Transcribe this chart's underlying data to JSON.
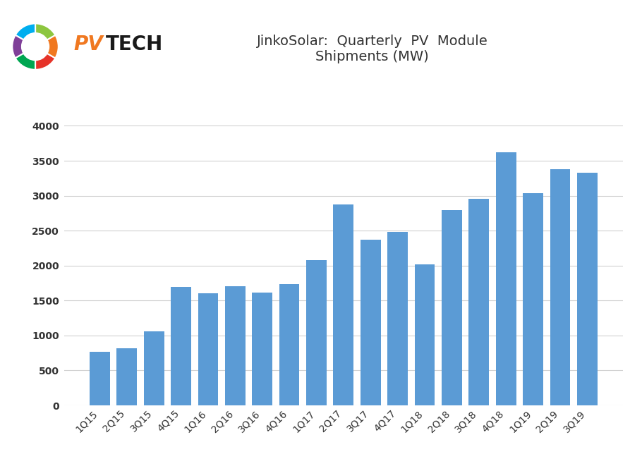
{
  "title": "JinkoSolar:  Quarterly  PV  Module\nShipments (MW)",
  "labels": [
    "1Q15",
    "2Q15",
    "3Q15",
    "4Q15",
    "1Q16",
    "2Q16",
    "3Q16",
    "4Q16",
    "1Q17",
    "2Q17",
    "3Q17",
    "4Q17",
    "1Q18",
    "2Q18",
    "3Q18",
    "4Q18",
    "1Q19",
    "2Q19",
    "3Q19"
  ],
  "values": [
    770,
    820,
    1060,
    1700,
    1600,
    1710,
    1610,
    1740,
    2080,
    2880,
    2370,
    2480,
    2020,
    2790,
    2960,
    3620,
    3040,
    3380,
    3326
  ],
  "bar_color": "#5b9bd5",
  "ylim": [
    0,
    4000
  ],
  "yticks": [
    0,
    500,
    1000,
    1500,
    2000,
    2500,
    3000,
    3500,
    4000
  ],
  "background_color": "#ffffff",
  "grid_color": "#d0d0d0",
  "title_fontsize": 14,
  "tick_fontsize": 10,
  "logo_text_pv": "PV",
  "logo_text_tech": "TECH",
  "logo_color_pv": "#f07820",
  "logo_color_tech": "#1a1a1a"
}
